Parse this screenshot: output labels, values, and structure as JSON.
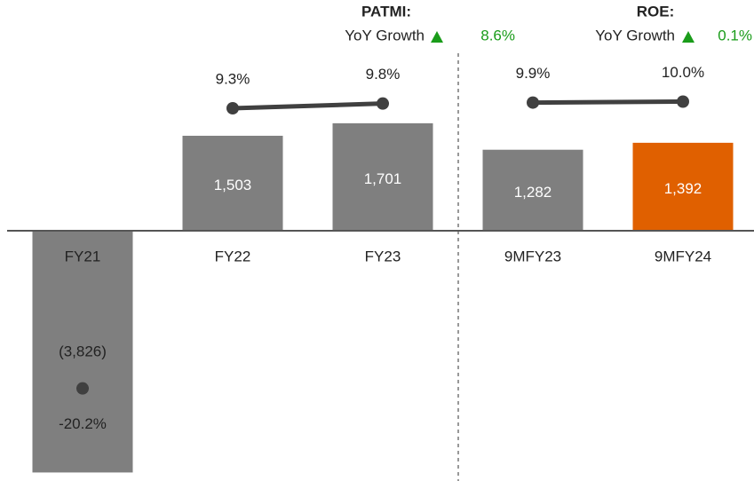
{
  "chart_data": {
    "type": "bar",
    "categories": [
      "FY21",
      "FY22",
      "FY23",
      "9MFY23",
      "9MFY24"
    ],
    "series": [
      {
        "name": "PATMI",
        "type": "bar",
        "colors": [
          "#7f7f7f",
          "#7f7f7f",
          "#7f7f7f",
          "#7f7f7f",
          "#e06000"
        ],
        "values": [
          -3826,
          1503,
          1701,
          1282,
          1392
        ],
        "value_labels": [
          "(3,826)",
          "1,503",
          "1,701",
          "1,282",
          "1,392"
        ]
      },
      {
        "name": "ROE",
        "type": "line",
        "color": "#404040",
        "values": [
          -20.2,
          9.3,
          9.8,
          9.9,
          10.0
        ],
        "value_labels": [
          "-20.2%",
          "9.3%",
          "9.8%",
          "9.9%",
          "10.0%"
        ]
      }
    ],
    "annotations": [
      {
        "title": "PATMI:",
        "label": "YoY Growth",
        "value": 8.6,
        "value_label": "8.6%"
      },
      {
        "title": "ROE:",
        "label": "YoY Growth",
        "value": 0.1,
        "value_label": "0.1%"
      }
    ]
  }
}
